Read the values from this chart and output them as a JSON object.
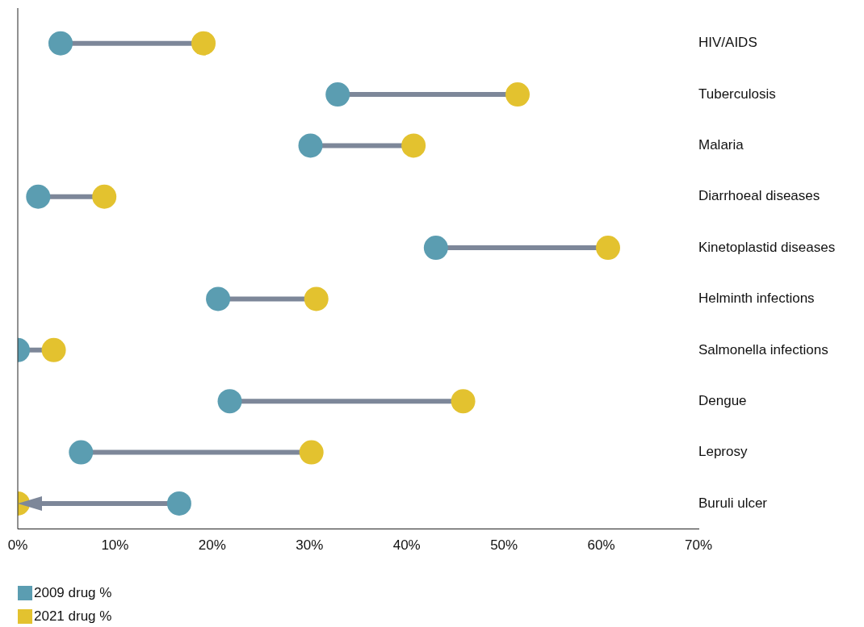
{
  "chart_data": {
    "type": "scatter",
    "orientation": "horizontal",
    "categories": [
      "HIV/AIDS",
      "Tuberculosis",
      "Malaria",
      "Diarrhoeal diseases",
      "Kinetoplastid diseases",
      "Helminth infections",
      "Salmonella infections",
      "Dengue",
      "Leprosy",
      "Buruli ulcer"
    ],
    "series": [
      {
        "name": "2009 drug %",
        "color": "#5b9db1",
        "values": [
          4.4,
          32.9,
          30.1,
          2.1,
          43.0,
          20.6,
          0,
          21.8,
          6.5,
          16.6
        ]
      },
      {
        "name": "2021 drug %",
        "color": "#e3c22f",
        "values": [
          19.1,
          51.4,
          40.7,
          8.9,
          60.7,
          30.7,
          3.7,
          45.8,
          30.2,
          0
        ]
      }
    ],
    "xlim": [
      0,
      70
    ],
    "xticks": [
      {
        "value": 0,
        "label": "0%"
      },
      {
        "value": 10,
        "label": "10%"
      },
      {
        "value": 20,
        "label": "20%"
      },
      {
        "value": 30,
        "label": "30%"
      },
      {
        "value": 40,
        "label": "40%"
      },
      {
        "value": 50,
        "label": "50%"
      },
      {
        "value": 60,
        "label": "60%"
      },
      {
        "value": 70,
        "label": "70%"
      }
    ],
    "marker": "circle",
    "grid": false,
    "legend": "bottom left"
  }
}
